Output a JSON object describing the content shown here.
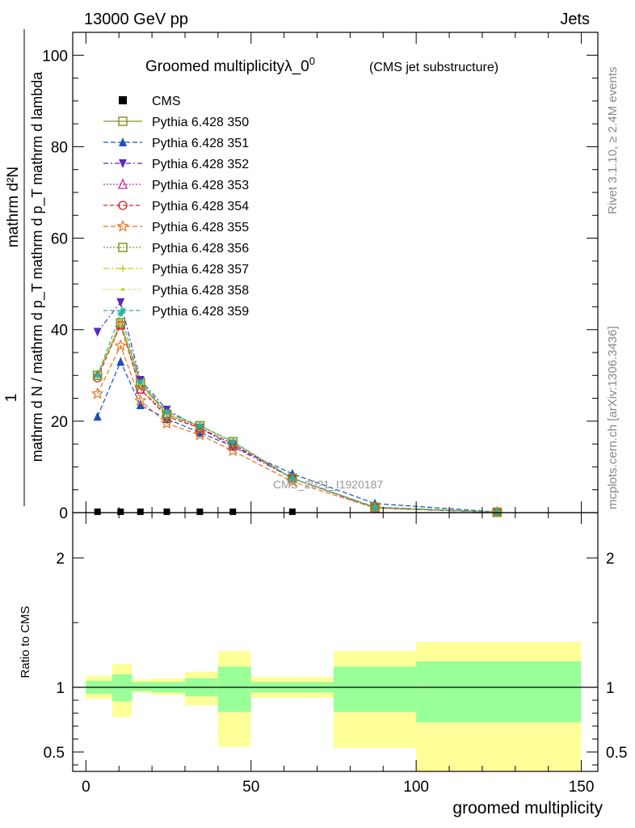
{
  "header": {
    "left": "13000 GeV pp",
    "right": "Jets"
  },
  "side_labels": {
    "rivet": "Rivet 3.1.10, ≥ 2.4M events",
    "mcplots": "mcplots.cern.ch [arXiv:1306.3436]"
  },
  "watermark": "CMS_2021_I1920187",
  "colors": {
    "band_inner": "#99ff99",
    "band_outer": "#ffff99",
    "cms": "#000000"
  },
  "chart_data": [
    {
      "type": "line",
      "title": "Groomed multiplicityλ_0",
      "title_superscript": "0",
      "subtitle": "(CMS jet substructure)",
      "ylabel_top": "1",
      "ylabel_bottom": "mathrm d N / mathrm d p_T mathrm d p_T mathrm d lambda",
      "ylabel_numerator": "mathrm d²N",
      "ylim": [
        0,
        105
      ],
      "xlim": [
        -4,
        155
      ],
      "yticks": [
        0,
        20,
        40,
        60,
        80,
        100
      ],
      "x": [
        3.5,
        10.5,
        16.5,
        24.5,
        34.5,
        44.5,
        62.5,
        87.5,
        124.5
      ],
      "series": [
        {
          "name": "CMS",
          "color": "#000000",
          "marker": "filled-square",
          "dash": "none",
          "values": [
            0.2,
            0.2,
            0.2,
            0.2,
            0.2,
            0.2,
            0.2,
            0,
            0
          ]
        },
        {
          "name": "Pythia 6.428 350",
          "color": "#8f8f2a",
          "marker": "open-square",
          "dash": "solid",
          "values": [
            30.0,
            41.5,
            28.5,
            21.5,
            19.0,
            15.5,
            7.5,
            1.2,
            0.1
          ]
        },
        {
          "name": "Pythia 6.428 351",
          "color": "#1f4fb8",
          "marker": "filled-triangle-up",
          "dash": "6,3",
          "values": [
            21.0,
            33.0,
            23.5,
            20.5,
            17.5,
            14.5,
            8.5,
            2.0,
            0.15
          ]
        },
        {
          "name": "Pythia 6.428 352",
          "color": "#5b2ab8",
          "marker": "filled-triangle-down",
          "dash": "6,3,2,3",
          "values": [
            39.5,
            46.0,
            29.0,
            22.5,
            18.5,
            14.5,
            7.5,
            1.0,
            0.05
          ]
        },
        {
          "name": "Pythia 6.428 353",
          "color": "#c0308a",
          "marker": "open-triangle-up",
          "dash": "2,2",
          "values": [
            30.0,
            41.0,
            27.0,
            21.5,
            18.5,
            15.0,
            7.5,
            1.1,
            0.1
          ]
        },
        {
          "name": "Pythia 6.428 354",
          "color": "#d0201f",
          "marker": "open-circle",
          "dash": "5,3",
          "values": [
            29.5,
            41.0,
            27.0,
            21.0,
            18.5,
            15.0,
            7.5,
            1.1,
            0.1
          ]
        },
        {
          "name": "Pythia 6.428 355",
          "color": "#e8731f",
          "marker": "open-star",
          "dash": "6,3",
          "values": [
            26.0,
            36.5,
            24.5,
            19.5,
            17.0,
            13.5,
            6.8,
            1.0,
            0.08
          ]
        },
        {
          "name": "Pythia 6.428 356",
          "color": "#7a9a1f",
          "marker": "open-square",
          "dash": "2,2",
          "values": [
            30.0,
            41.5,
            28.0,
            21.5,
            19.0,
            15.5,
            7.5,
            1.2,
            0.1
          ]
        },
        {
          "name": "Pythia 6.428 357",
          "color": "#d8c21f",
          "marker": "small-cross",
          "dash": "7,3,2,3",
          "values": [
            30.0,
            41.5,
            28.0,
            21.5,
            19.0,
            15.5,
            7.5,
            1.2,
            0.1
          ]
        },
        {
          "name": "Pythia 6.428 358",
          "color": "#b8d82a",
          "marker": "small-dot",
          "dash": "1,2",
          "values": [
            30.0,
            41.0,
            28.0,
            21.5,
            19.0,
            15.5,
            7.5,
            1.2,
            0.1
          ]
        },
        {
          "name": "Pythia 6.428 359",
          "color": "#1fb89a",
          "marker": "small-star",
          "dash": "5,3",
          "values": [
            30.0,
            43.5,
            28.5,
            22.0,
            19.0,
            15.5,
            7.5,
            1.2,
            0.1
          ]
        }
      ]
    },
    {
      "type": "area",
      "ylabel": "Ratio to CMS",
      "xlabel": "groomed multiplicity",
      "ylim": [
        0.35,
        2.35
      ],
      "xlim": [
        -4,
        155
      ],
      "yticks": [
        0.5,
        1,
        2
      ],
      "ytick_labels": [
        "0.5",
        "1",
        "2"
      ],
      "xticks": [
        0,
        50,
        100,
        150
      ],
      "xtick_labels": [
        "0",
        "50",
        "100",
        "150"
      ],
      "reference_line": 1,
      "bins": [
        {
          "x0": 0,
          "x1": 8,
          "inner": [
            0.95,
            1.05
          ],
          "outer": [
            0.91,
            1.09
          ]
        },
        {
          "x0": 8,
          "x1": 14,
          "inner": [
            0.89,
            1.1
          ],
          "outer": [
            0.77,
            1.18
          ]
        },
        {
          "x0": 14,
          "x1": 20,
          "inner": [
            0.97,
            1.04
          ],
          "outer": [
            0.96,
            1.06
          ]
        },
        {
          "x0": 20,
          "x1": 30,
          "inner": [
            0.96,
            1.04
          ],
          "outer": [
            0.94,
            1.07
          ]
        },
        {
          "x0": 30,
          "x1": 40,
          "inner": [
            0.93,
            1.07
          ],
          "outer": [
            0.86,
            1.12
          ]
        },
        {
          "x0": 40,
          "x1": 50,
          "inner": [
            0.81,
            1.16
          ],
          "outer": [
            0.54,
            1.28
          ]
        },
        {
          "x0": 50,
          "x1": 75,
          "inner": [
            0.96,
            1.04
          ],
          "outer": [
            0.92,
            1.08
          ]
        },
        {
          "x0": 75,
          "x1": 100,
          "inner": [
            0.81,
            1.16
          ],
          "outer": [
            0.53,
            1.28
          ]
        },
        {
          "x0": 100,
          "x1": 150,
          "inner": [
            0.73,
            1.2
          ],
          "outer": [
            0.35,
            1.35
          ]
        }
      ]
    }
  ]
}
